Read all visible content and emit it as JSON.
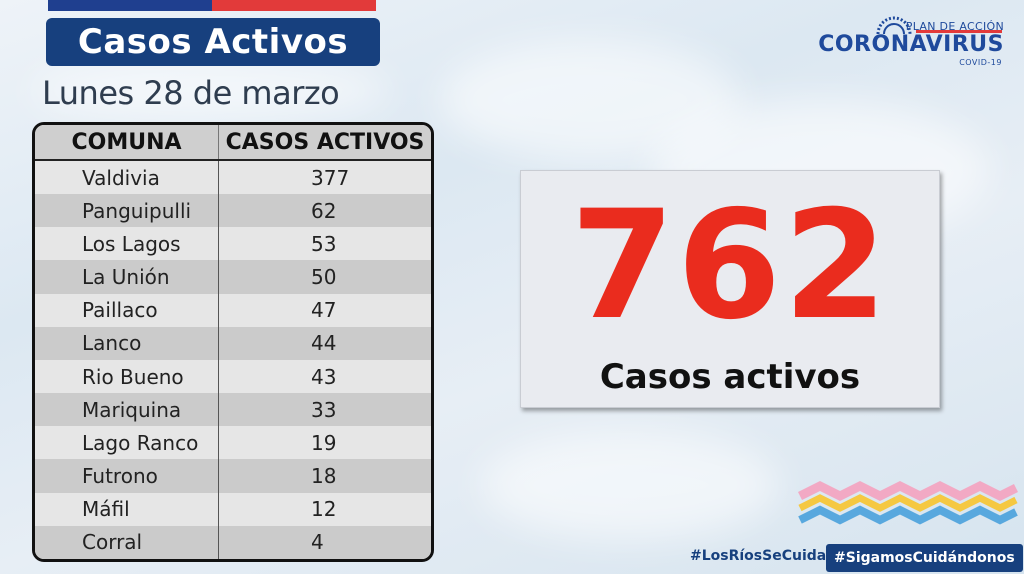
{
  "header": {
    "title": "Casos Activos",
    "date": "Lunes 28 de marzo"
  },
  "logo": {
    "plan": "PLAN DE ACCIÓN",
    "main": "CORONAVIRUS",
    "sub": "COVID-19"
  },
  "table": {
    "headers": [
      "COMUNA",
      "CASOS ACTIVOS"
    ],
    "rows": [
      {
        "comuna": "Valdivia",
        "casos": "377"
      },
      {
        "comuna": "Panguipulli",
        "casos": "62"
      },
      {
        "comuna": "Los Lagos",
        "casos": "53"
      },
      {
        "comuna": "La Unión",
        "casos": "50"
      },
      {
        "comuna": "Paillaco",
        "casos": "47"
      },
      {
        "comuna": "Lanco",
        "casos": "44"
      },
      {
        "comuna": "Rio Bueno",
        "casos": "43"
      },
      {
        "comuna": "Mariquina",
        "casos": "33"
      },
      {
        "comuna": "Lago Ranco",
        "casos": "19"
      },
      {
        "comuna": "Futrono",
        "casos": "18"
      },
      {
        "comuna": "Máfil",
        "casos": "12"
      },
      {
        "comuna": "Corral",
        "casos": "4"
      }
    ]
  },
  "total": {
    "value": "762",
    "label": "Casos activos"
  },
  "footer": {
    "hashtag1": "#LosRíosSeCuida",
    "hashtag2": "#SigamosCuidándonos"
  },
  "colors": {
    "brand_blue": "#17407e",
    "accent_red": "#ea2c1e"
  }
}
